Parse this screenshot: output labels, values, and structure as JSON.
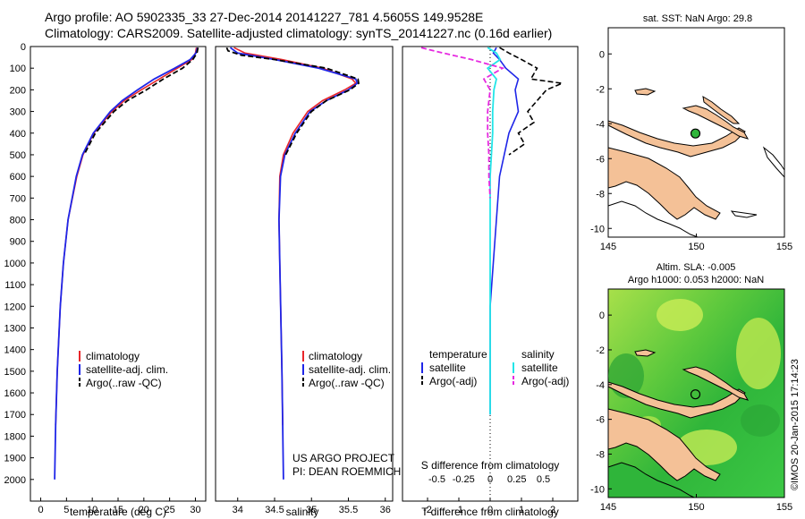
{
  "header": {
    "line1": "Argo profile: AO 5902335_33 27-Dec-2014 20141227_781 4.5605S 149.9528E",
    "line2": "Climatology: CARS2009. Satellite-adjusted climatology: synTS_20141227.nc (0.16d earlier)"
  },
  "colors": {
    "climatology": "#e8262a",
    "satellite": "#1f26e8",
    "argo": "#000000",
    "salinity_sat": "#22e5e8",
    "salinity_argo": "#e629e0",
    "land": "#f4c197",
    "sla_green": "#2fb53a",
    "sla_yellow": "#a8e04a"
  },
  "depth_axis": {
    "ticks": [
      0,
      100,
      200,
      300,
      400,
      500,
      600,
      700,
      800,
      900,
      1000,
      1100,
      1200,
      1300,
      1400,
      1500,
      1600,
      1700,
      1800,
      1900,
      2000
    ],
    "range": [
      0,
      2100
    ]
  },
  "chart_data": [
    {
      "type": "line",
      "name": "temperature-profile",
      "xlabel": "temperature (deg C)",
      "xlim": [
        -2,
        32
      ],
      "xticks": [
        0,
        5,
        10,
        15,
        20,
        25,
        30
      ],
      "ylim": [
        2100,
        0
      ],
      "legend": [
        "climatology",
        "satellite-adj. clim.",
        "Argo(..raw -QC)"
      ],
      "series": [
        {
          "name": "climatology",
          "depth": [
            5,
            30,
            60,
            100,
            150,
            200,
            250,
            300,
            400,
            500,
            600,
            800,
            1000,
            1200,
            1500,
            1750
          ],
          "values": [
            30.2,
            30.0,
            29.3,
            26.5,
            23.0,
            19.5,
            16.2,
            13.8,
            10.3,
            8.2,
            7.0,
            5.3,
            4.4,
            3.8,
            3.2,
            2.9
          ]
        },
        {
          "name": "satellite-adj. clim.",
          "depth": [
            5,
            30,
            60,
            100,
            150,
            200,
            250,
            300,
            400,
            500,
            600,
            800,
            1000,
            1200,
            1500,
            1750,
            2000
          ],
          "values": [
            30.4,
            30.1,
            29.0,
            26.0,
            22.0,
            18.8,
            15.8,
            13.5,
            10.2,
            8.1,
            6.9,
            5.3,
            4.4,
            3.8,
            3.2,
            2.9,
            2.7
          ]
        },
        {
          "name": "Argo(..raw -QC)",
          "depth": [
            5,
            30,
            60,
            100,
            150,
            200,
            250,
            300,
            400,
            500
          ],
          "values": [
            30.5,
            30.3,
            29.5,
            27.5,
            23.8,
            20.5,
            16.8,
            14.2,
            10.6,
            8.4
          ]
        }
      ]
    },
    {
      "type": "line",
      "name": "salinity-profile",
      "xlabel": "salinity",
      "xlim": [
        33.7,
        36.1
      ],
      "xticks": [
        34,
        34.5,
        35,
        35.5,
        36
      ],
      "ylim": [
        2100,
        0
      ],
      "legend": [
        "climatology",
        "satellite-adj. clim.",
        "Argo(..raw -QC)"
      ],
      "series": [
        {
          "name": "climatology",
          "depth": [
            5,
            30,
            60,
            100,
            150,
            170,
            200,
            250,
            300,
            400,
            500,
            600,
            800,
            1000,
            1500,
            1750
          ],
          "values": [
            33.95,
            34.1,
            34.6,
            35.15,
            35.55,
            35.6,
            35.45,
            35.15,
            34.95,
            34.75,
            34.62,
            34.57,
            34.56,
            34.57,
            34.6,
            34.61
          ]
        },
        {
          "name": "satellite-adj. clim.",
          "depth": [
            5,
            30,
            60,
            100,
            150,
            170,
            200,
            250,
            300,
            400,
            500,
            600,
            800,
            1000,
            1500,
            2000
          ],
          "values": [
            33.9,
            34.0,
            34.5,
            35.1,
            35.6,
            35.62,
            35.5,
            35.2,
            34.98,
            34.78,
            34.64,
            34.58,
            34.56,
            34.57,
            34.6,
            34.62
          ]
        },
        {
          "name": "Argo(..raw -QC)",
          "depth": [
            5,
            20,
            40,
            60,
            100,
            150,
            170,
            200,
            250,
            300,
            400,
            500
          ],
          "values": [
            33.85,
            33.87,
            34.05,
            34.5,
            35.2,
            35.63,
            35.64,
            35.52,
            35.2,
            35.0,
            34.8,
            34.65
          ]
        }
      ]
    },
    {
      "type": "line",
      "name": "difference-profile",
      "xlabel": "T difference from climatology",
      "xlabel2": "S difference from climatology",
      "xlim": [
        -2.8,
        2.8
      ],
      "xticks": [
        -2,
        -1,
        0,
        1,
        2
      ],
      "s_ticks": [
        "-0.5",
        "-0.25",
        "0",
        "0.25",
        "0.5"
      ],
      "ylim": [
        2100,
        0
      ],
      "legend": {
        "temperature_title": "temperature",
        "salinity_title": "salinity",
        "temperature_items": [
          "satellite",
          "Argo(-adj)"
        ],
        "salinity_items": [
          "satellite",
          "Argo(-adj)"
        ]
      },
      "series": [
        {
          "name": "T satellite",
          "depth": [
            5,
            30,
            60,
            100,
            150,
            200,
            300,
            400,
            600,
            800,
            1000,
            1200,
            1300,
            1500,
            1700
          ],
          "values": [
            0.2,
            0.1,
            0.3,
            0.5,
            0.9,
            0.8,
            0.9,
            0.6,
            0.3,
            0.2,
            0.1,
            0.0,
            0.0,
            0.0,
            0.0
          ]
        },
        {
          "name": "T Argo(-adj)",
          "depth": [
            5,
            30,
            60,
            100,
            150,
            170,
            200,
            250,
            300,
            350,
            400,
            450,
            500
          ],
          "values": [
            0.3,
            0.6,
            1.0,
            1.5,
            1.3,
            2.3,
            1.8,
            1.5,
            1.2,
            1.4,
            0.9,
            1.1,
            0.6
          ]
        },
        {
          "name": "S satellite",
          "depth": [
            5,
            30,
            60,
            100,
            150,
            200,
            300,
            400,
            600,
            800,
            1000,
            1200,
            1300,
            1500,
            1700
          ],
          "values": [
            -0.02,
            0.05,
            0.08,
            -0.02,
            0.05,
            0.03,
            0.02,
            0.02,
            0.0,
            0.0,
            0.0,
            0.0,
            0.0,
            0.0,
            0.0
          ]
        },
        {
          "name": "S Argo(-adj)",
          "depth": [
            5,
            20,
            40,
            60,
            100,
            150,
            200,
            300,
            400,
            500,
            600,
            700
          ],
          "values": [
            -0.55,
            -0.45,
            -0.3,
            -0.15,
            0.1,
            -0.05,
            0.0,
            -0.02,
            -0.02,
            -0.01,
            -0.01,
            0.0
          ]
        }
      ]
    }
  ],
  "credits": {
    "line1": "US ARGO PROJECT",
    "line2": "PI: DEAN ROEMMICH"
  },
  "sst_map": {
    "title": "sat. SST: NaN Argo: 29.8",
    "xticks": [
      "145",
      "150",
      "155"
    ],
    "yticks": [
      "0",
      "-2",
      "-4",
      "-6",
      "-8",
      "-10"
    ],
    "xlim": [
      145,
      155
    ],
    "ylim": [
      -10.5,
      1.5
    ],
    "float_lon": 149.95,
    "float_lat": -4.56
  },
  "sla_map": {
    "title1": "Altim. SLA: -0.005",
    "title2": "Argo h1000: 0.053 h2000: NaN",
    "xticks": [
      "145",
      "150",
      "155"
    ],
    "yticks": [
      "0",
      "-2",
      "-4",
      "-6",
      "-8",
      "-10"
    ],
    "xlim": [
      145,
      155
    ],
    "ylim": [
      -10.5,
      1.5
    ]
  },
  "stamp": "©IMOS 20-Jan-2015 17:14:23"
}
